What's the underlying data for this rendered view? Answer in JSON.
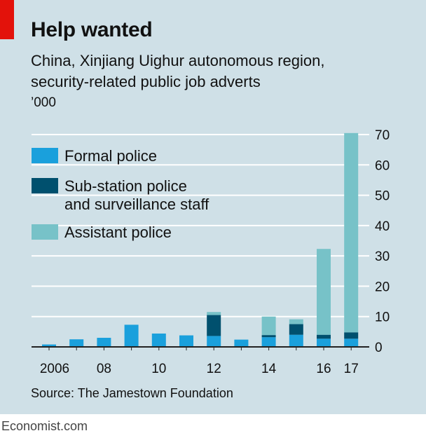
{
  "title": "Help wanted",
  "subtitle_line1": "China, Xinjiang Uighur autonomous region,",
  "subtitle_line2": "security-related public job adverts",
  "units": "’000",
  "source": "Source: The Jamestown Foundation",
  "brand": "Economist.com",
  "colors": {
    "background": "#cfe0e7",
    "accent": "#e3120b",
    "formal_police": "#1aa0dc",
    "sub_station": "#00506e",
    "assistant_police": "#77c2c8",
    "gridline": "#ffffff",
    "baseline": "#222222"
  },
  "chart_data": {
    "type": "bar",
    "stacked": true,
    "categories": [
      "2006",
      "2007",
      "2008",
      "2009",
      "2010",
      "2011",
      "2012",
      "2013",
      "2014",
      "2015",
      "2016",
      "2017"
    ],
    "x_tick_labels": [
      "2006",
      "",
      "08",
      "",
      "10",
      "",
      "12",
      "",
      "14",
      "",
      "16",
      "17"
    ],
    "series": [
      {
        "name": "Formal police",
        "color": "#1aa0dc",
        "values": [
          0.8,
          2.5,
          3.0,
          7.3,
          4.4,
          3.8,
          3.6,
          2.4,
          3.2,
          4.0,
          2.7,
          2.7
        ]
      },
      {
        "name": "Sub-station police and surveillance staff",
        "color": "#00506e",
        "values": [
          0,
          0,
          0,
          0,
          0,
          0,
          6.9,
          0,
          0.7,
          3.5,
          1.3,
          2.1
        ]
      },
      {
        "name": "Assistant police",
        "color": "#77c2c8",
        "values": [
          0,
          0,
          0,
          0,
          0,
          0,
          1.0,
          0,
          6.1,
          1.6,
          28.3,
          65.7
        ]
      }
    ],
    "legend": [
      {
        "label": "Formal police",
        "color": "#1aa0dc"
      },
      {
        "label": "Sub-station police",
        "label2": "and surveillance staff",
        "color": "#00506e"
      },
      {
        "label": "Assistant police",
        "color": "#77c2c8"
      }
    ],
    "ylim": [
      0,
      70
    ],
    "y_ticks": [
      0,
      10,
      20,
      30,
      40,
      50,
      60,
      70
    ],
    "y_axis_position": "right",
    "grid": true,
    "legend_position": "top-left"
  }
}
